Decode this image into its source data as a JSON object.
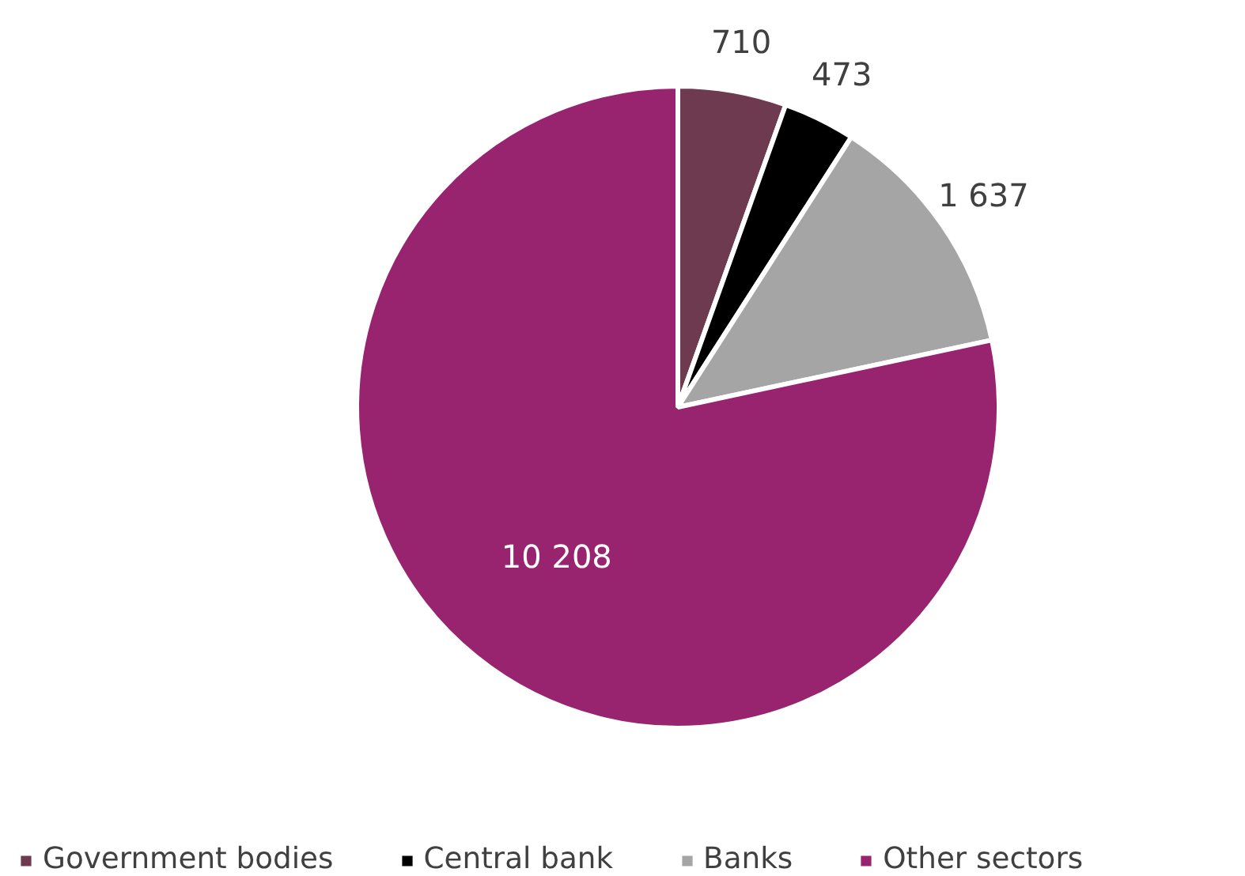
{
  "chart_data": {
    "type": "pie",
    "categories": [
      "Government bodies",
      "Central bank",
      "Banks",
      "Other sectors"
    ],
    "values": [
      710,
      473,
      1637,
      10208
    ],
    "value_labels": [
      "710",
      "473",
      "1 637",
      "10 208"
    ],
    "colors": [
      "#6e3a50",
      "#000000",
      "#a5a5a5",
      "#982470"
    ],
    "legend": "bottom"
  }
}
